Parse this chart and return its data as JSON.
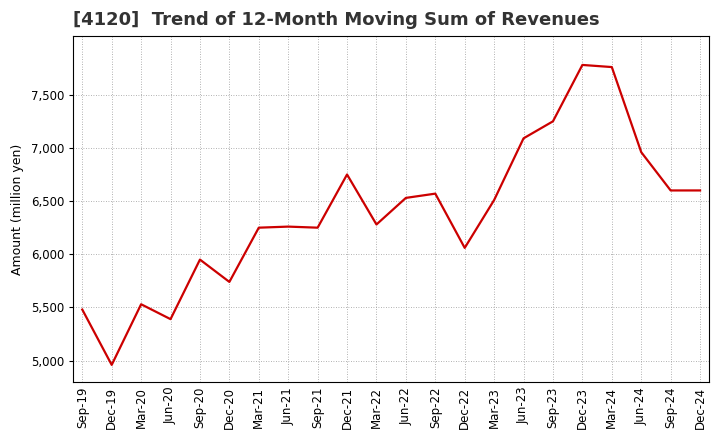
{
  "title": "[4120]  Trend of 12-Month Moving Sum of Revenues",
  "ylabel": "Amount (million yen)",
  "background_color": "#ffffff",
  "plot_bg_color": "#ffffff",
  "line_color": "#cc0000",
  "grid_color": "#999999",
  "title_color": "#333333",
  "xlabels": [
    "Sep-19",
    "Dec-19",
    "Mar-20",
    "Jun-20",
    "Sep-20",
    "Dec-20",
    "Mar-21",
    "Jun-21",
    "Sep-21",
    "Dec-21",
    "Mar-22",
    "Jun-22",
    "Sep-22",
    "Dec-22",
    "Mar-23",
    "Jun-23",
    "Sep-23",
    "Dec-23",
    "Mar-24",
    "Jun-24",
    "Sep-24",
    "Dec-24"
  ],
  "values": [
    5480,
    4960,
    5530,
    5390,
    5950,
    5740,
    6250,
    6260,
    6250,
    6750,
    6280,
    6530,
    6570,
    6060,
    6510,
    7090,
    7250,
    7780,
    7760,
    6960,
    6600,
    6600
  ],
  "ylim": [
    4800,
    8050
  ],
  "yticks": [
    5000,
    5500,
    6000,
    6500,
    7000,
    7500
  ],
  "title_fontsize": 13,
  "axis_fontsize": 9,
  "tick_fontsize": 8.5
}
